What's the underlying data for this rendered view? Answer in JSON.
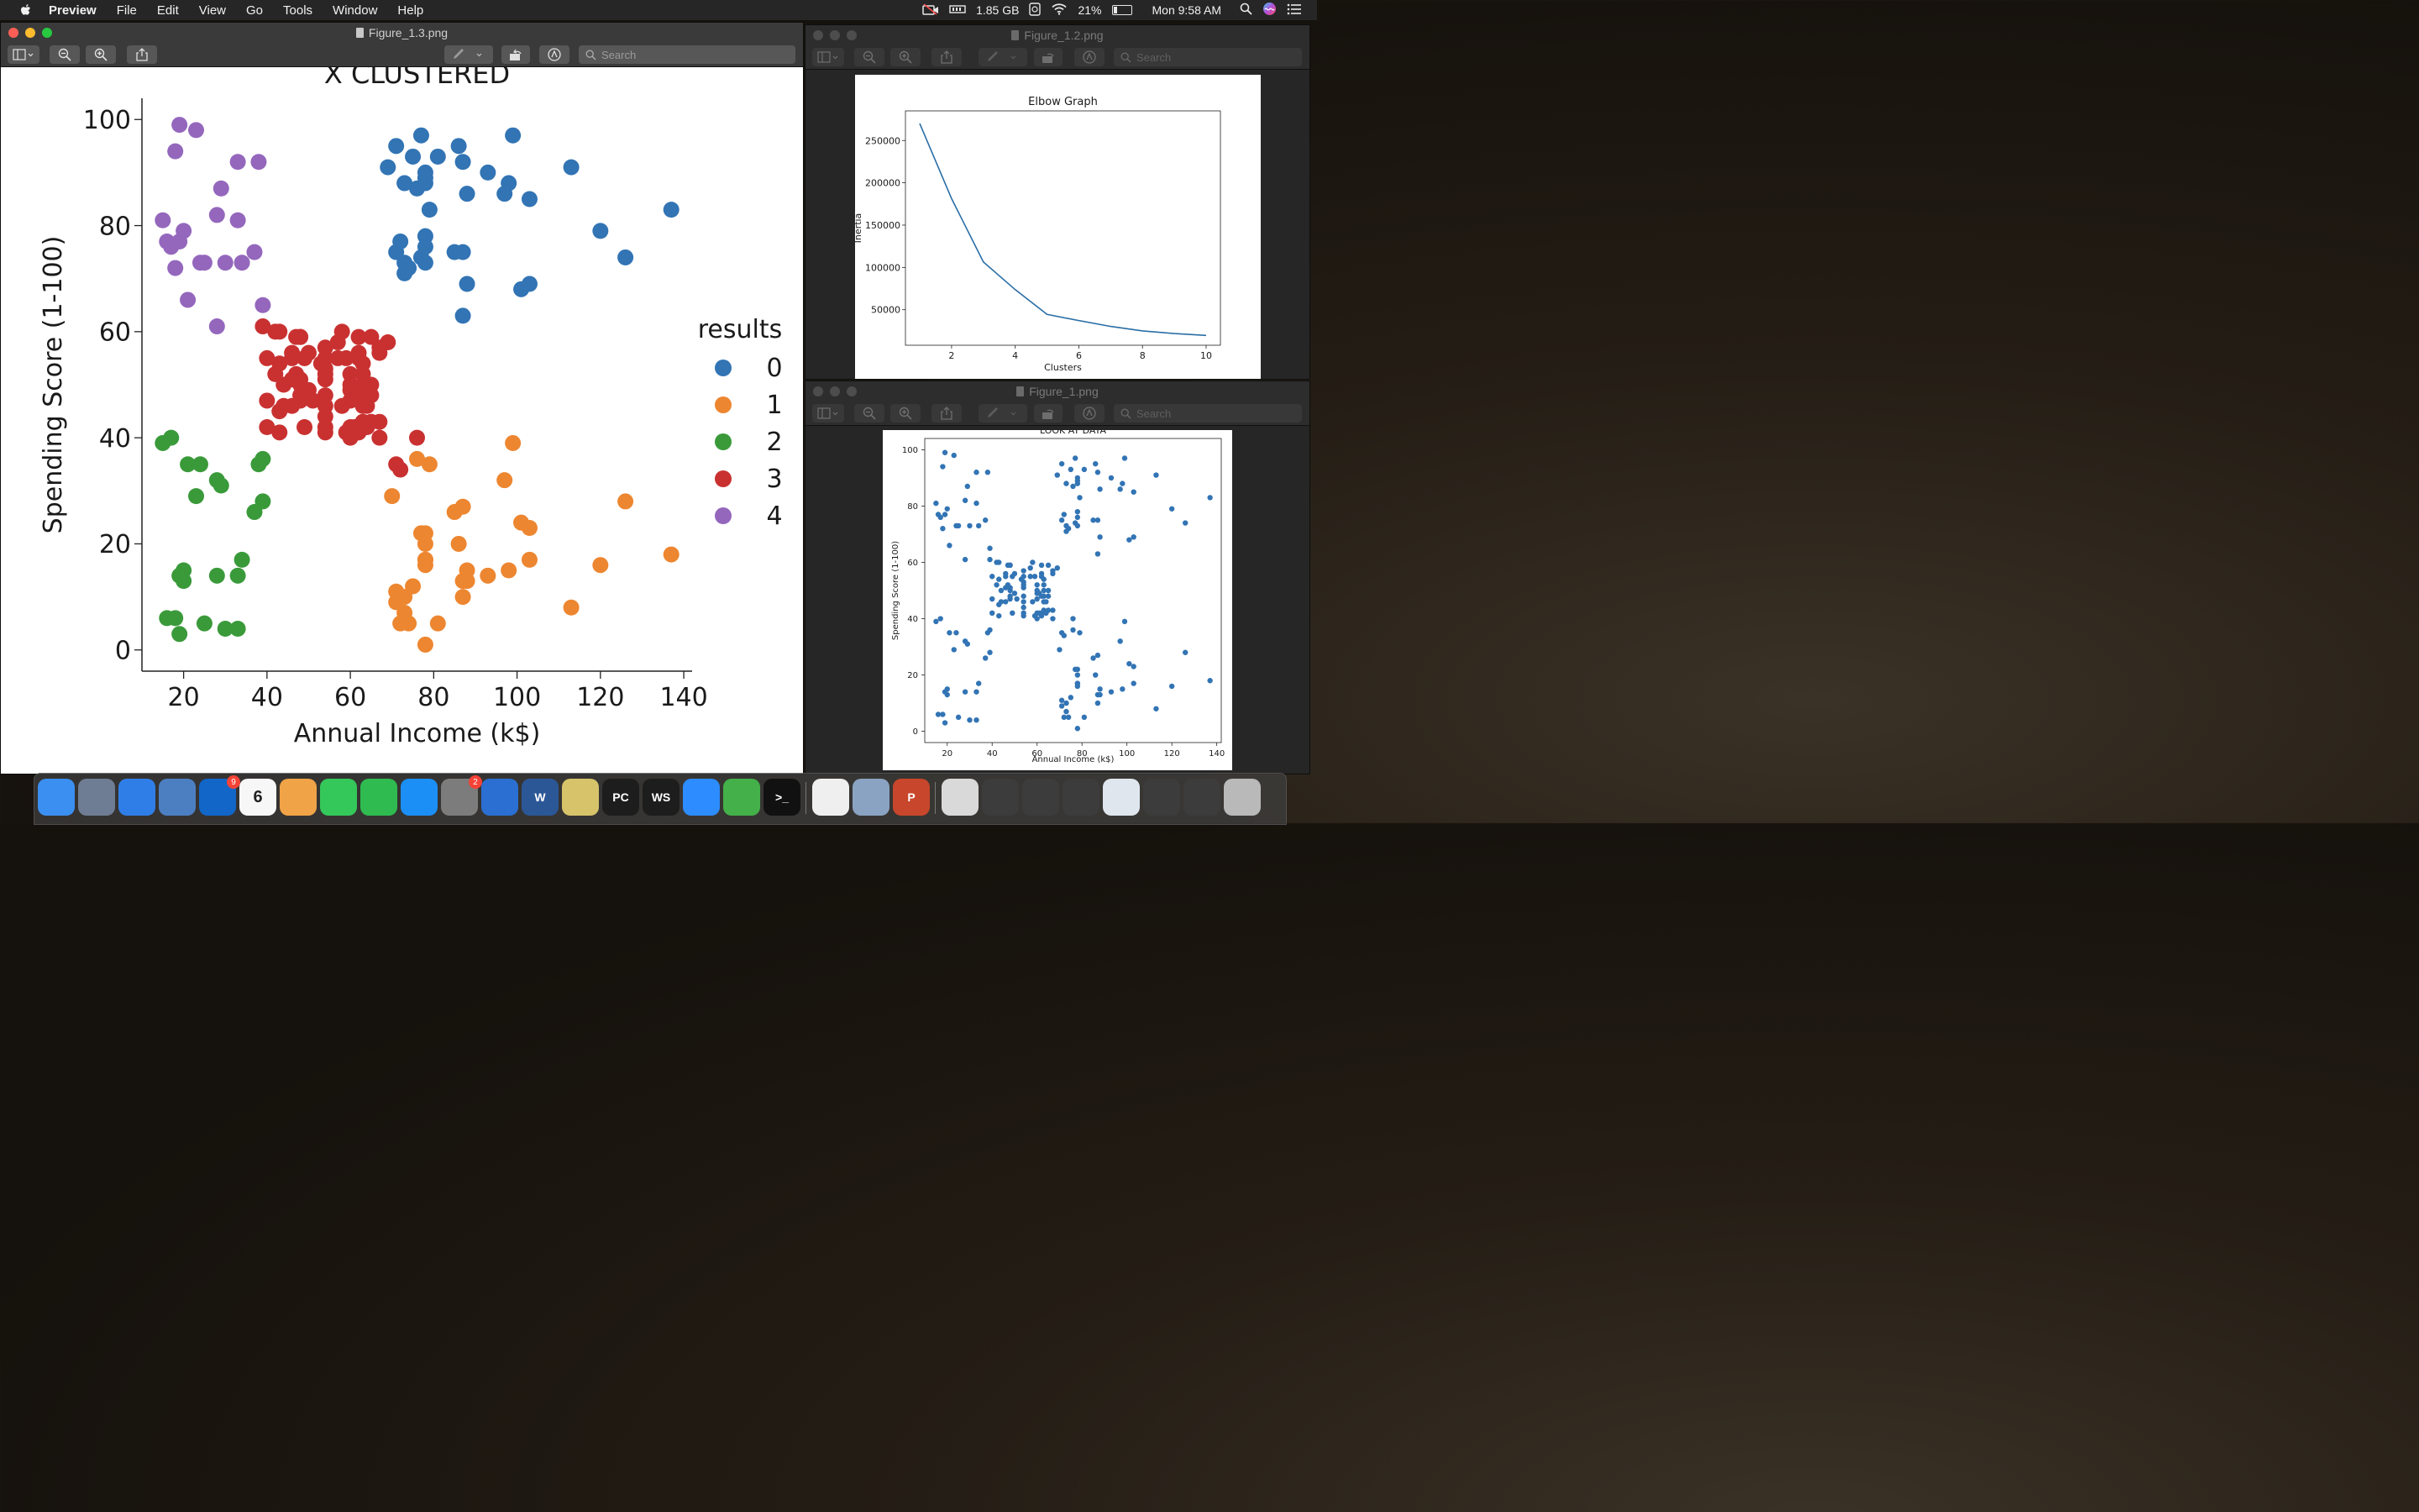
{
  "menubar": {
    "app_name": "Preview",
    "menus": [
      "File",
      "Edit",
      "View",
      "Go",
      "Tools",
      "Window",
      "Help"
    ],
    "memory": "1.85 GB",
    "battery_percent": "21%",
    "clock": "Mon 9:58 AM"
  },
  "windows": {
    "fig13": {
      "title": "Figure_1.3.png",
      "search_placeholder": "Search"
    },
    "fig12": {
      "title": "Figure_1.2.png",
      "search_placeholder": "Search"
    },
    "fig1": {
      "title": "Figure_1.png",
      "search_placeholder": "Search"
    }
  },
  "chart_data": [
    {
      "type": "scatter",
      "title": "X CLUSTERED",
      "xlabel": "Annual Income (k$)",
      "ylabel": "Spending Score (1-100)",
      "xlim": [
        10,
        142
      ],
      "ylim": [
        -4,
        104
      ],
      "xticks": [
        20,
        40,
        60,
        80,
        100,
        120,
        140
      ],
      "yticks": [
        0,
        20,
        40,
        60,
        80,
        100
      ],
      "legend_title": "results",
      "legend_position": "right",
      "series": [
        {
          "name": "0",
          "color": "#3274b4",
          "points": [
            [
              69,
              91
            ],
            [
              71,
              95
            ],
            [
              71,
              75
            ],
            [
              72,
              77
            ],
            [
              73,
              88
            ],
            [
              73,
              73
            ],
            [
              73,
              71
            ],
            [
              74,
              72
            ],
            [
              75,
              93
            ],
            [
              76,
              87
            ],
            [
              77,
              97
            ],
            [
              77,
              74
            ],
            [
              78,
              90
            ],
            [
              78,
              88
            ],
            [
              78,
              78
            ],
            [
              78,
              76
            ],
            [
              78,
              89
            ],
            [
              78,
              73
            ],
            [
              79,
              83
            ],
            [
              81,
              93
            ],
            [
              85,
              75
            ],
            [
              86,
              95
            ],
            [
              87,
              75
            ],
            [
              87,
              92
            ],
            [
              87,
              63
            ],
            [
              88,
              86
            ],
            [
              88,
              69
            ],
            [
              93,
              90
            ],
            [
              97,
              86
            ],
            [
              98,
              88
            ],
            [
              99,
              97
            ],
            [
              101,
              68
            ],
            [
              103,
              85
            ],
            [
              103,
              69
            ],
            [
              113,
              91
            ],
            [
              120,
              79
            ],
            [
              126,
              74
            ],
            [
              137,
              83
            ]
          ]
        },
        {
          "name": "1",
          "color": "#ed8630",
          "points": [
            [
              70,
              29
            ],
            [
              71,
              11
            ],
            [
              71,
              9
            ],
            [
              72,
              5
            ],
            [
              73,
              7
            ],
            [
              73,
              10
            ],
            [
              74,
              5
            ],
            [
              75,
              12
            ],
            [
              76,
              36
            ],
            [
              77,
              22
            ],
            [
              78,
              17
            ],
            [
              78,
              20
            ],
            [
              78,
              16
            ],
            [
              78,
              1
            ],
            [
              78,
              22
            ],
            [
              78,
              17
            ],
            [
              79,
              35
            ],
            [
              81,
              5
            ],
            [
              85,
              26
            ],
            [
              86,
              20
            ],
            [
              87,
              27
            ],
            [
              87,
              13
            ],
            [
              87,
              10
            ],
            [
              88,
              13
            ],
            [
              88,
              15
            ],
            [
              93,
              14
            ],
            [
              97,
              32
            ],
            [
              98,
              15
            ],
            [
              99,
              39
            ],
            [
              101,
              24
            ],
            [
              103,
              17
            ],
            [
              103,
              23
            ],
            [
              113,
              8
            ],
            [
              120,
              16
            ],
            [
              126,
              28
            ],
            [
              137,
              18
            ]
          ]
        },
        {
          "name": "2",
          "color": "#3a9a3a",
          "points": [
            [
              15,
              39
            ],
            [
              16,
              6
            ],
            [
              17,
              40
            ],
            [
              18,
              6
            ],
            [
              19,
              3
            ],
            [
              19,
              14
            ],
            [
              20,
              15
            ],
            [
              20,
              13
            ],
            [
              21,
              35
            ],
            [
              23,
              29
            ],
            [
              24,
              35
            ],
            [
              25,
              5
            ],
            [
              28,
              14
            ],
            [
              28,
              32
            ],
            [
              29,
              31
            ],
            [
              30,
              4
            ],
            [
              33,
              4
            ],
            [
              33,
              14
            ],
            [
              34,
              17
            ],
            [
              37,
              26
            ],
            [
              38,
              35
            ],
            [
              39,
              36
            ],
            [
              39,
              28
            ]
          ]
        },
        {
          "name": "3",
          "color": "#c93131",
          "points": [
            [
              39,
              61
            ],
            [
              40,
              55
            ],
            [
              40,
              47
            ],
            [
              40,
              42
            ],
            [
              42,
              52
            ],
            [
              42,
              60
            ],
            [
              43,
              54
            ],
            [
              43,
              60
            ],
            [
              43,
              45
            ],
            [
              43,
              41
            ],
            [
              44,
              50
            ],
            [
              44,
              46
            ],
            [
              46,
              51
            ],
            [
              46,
              46
            ],
            [
              46,
              56
            ],
            [
              46,
              55
            ],
            [
              47,
              52
            ],
            [
              47,
              59
            ],
            [
              48,
              51
            ],
            [
              48,
              59
            ],
            [
              48,
              50
            ],
            [
              48,
              48
            ],
            [
              48,
              59
            ],
            [
              48,
              47
            ],
            [
              49,
              55
            ],
            [
              49,
              42
            ],
            [
              50,
              49
            ],
            [
              50,
              56
            ],
            [
              51,
              47
            ],
            [
              53,
              54
            ],
            [
              54,
              53
            ],
            [
              54,
              48
            ],
            [
              54,
              52
            ],
            [
              54,
              42
            ],
            [
              54,
              51
            ],
            [
              54,
              55
            ],
            [
              54,
              41
            ],
            [
              54,
              44
            ],
            [
              54,
              57
            ],
            [
              54,
              46
            ],
            [
              57,
              58
            ],
            [
              57,
              55
            ],
            [
              58,
              60
            ],
            [
              58,
              46
            ],
            [
              59,
              55
            ],
            [
              59,
              41
            ],
            [
              60,
              49
            ],
            [
              60,
              40
            ],
            [
              60,
              42
            ],
            [
              60,
              52
            ],
            [
              60,
              47
            ],
            [
              60,
              50
            ],
            [
              61,
              42
            ],
            [
              61,
              49
            ],
            [
              62,
              41
            ],
            [
              62,
              48
            ],
            [
              62,
              59
            ],
            [
              62,
              55
            ],
            [
              62,
              56
            ],
            [
              62,
              42
            ],
            [
              63,
              50
            ],
            [
              63,
              46
            ],
            [
              63,
              43
            ],
            [
              63,
              48
            ],
            [
              63,
              52
            ],
            [
              63,
              54
            ],
            [
              64,
              42
            ],
            [
              64,
              46
            ],
            [
              65,
              48
            ],
            [
              65,
              50
            ],
            [
              65,
              43
            ],
            [
              65,
              59
            ],
            [
              67,
              43
            ],
            [
              67,
              57
            ],
            [
              67,
              56
            ],
            [
              67,
              40
            ],
            [
              69,
              58
            ],
            [
              71,
              35
            ],
            [
              72,
              34
            ],
            [
              76,
              40
            ]
          ]
        },
        {
          "name": "4",
          "color": "#9467bd",
          "points": [
            [
              15,
              81
            ],
            [
              16,
              77
            ],
            [
              17,
              76
            ],
            [
              18,
              94
            ],
            [
              18,
              72
            ],
            [
              19,
              99
            ],
            [
              19,
              77
            ],
            [
              20,
              79
            ],
            [
              21,
              66
            ],
            [
              23,
              98
            ],
            [
              24,
              73
            ],
            [
              25,
              73
            ],
            [
              28,
              82
            ],
            [
              28,
              61
            ],
            [
              29,
              87
            ],
            [
              30,
              73
            ],
            [
              33,
              92
            ],
            [
              33,
              81
            ],
            [
              34,
              73
            ],
            [
              37,
              75
            ],
            [
              38,
              92
            ],
            [
              39,
              65
            ]
          ]
        }
      ]
    },
    {
      "type": "line",
      "title": "Elbow Graph",
      "xlabel": "Clusters",
      "ylabel": "Inertia",
      "xlim": [
        0.55,
        10.45
      ],
      "ylim": [
        8000,
        285000
      ],
      "xticks": [
        2,
        4,
        6,
        8,
        10
      ],
      "yticks": [
        50000,
        100000,
        150000,
        200000,
        250000
      ],
      "series": [
        {
          "x": [
            1,
            2,
            3,
            4,
            5,
            6,
            7,
            8,
            9,
            10
          ],
          "values": [
            269981,
            181363,
            106348,
            73679,
            44448,
            37233,
            30259,
            25011,
            21850,
            19657
          ]
        }
      ]
    },
    {
      "type": "scatter",
      "title": "LOOK AT DATA",
      "xlabel": "Annual Income (k$)",
      "ylabel": "Spending Score (1-100)",
      "xlim": [
        10,
        142
      ],
      "ylim": [
        -4,
        104
      ],
      "xticks": [
        20,
        40,
        60,
        80,
        100,
        120,
        140
      ],
      "yticks": [
        0,
        20,
        40,
        60,
        80,
        100
      ],
      "series": [
        {
          "color": "#3274b4",
          "points_from": "all_clusters"
        }
      ]
    }
  ],
  "dock": {
    "items": [
      {
        "name": "finder-icon",
        "bg": "#3b8ff0"
      },
      {
        "name": "launchpad-icon",
        "bg": "#6e7d93"
      },
      {
        "name": "safari-icon",
        "bg": "#2f7ee8"
      },
      {
        "name": "preview-icon",
        "bg": "#4c7fc2"
      },
      {
        "name": "outlook-icon",
        "bg": "#1166c8",
        "badge": "9"
      },
      {
        "name": "calendar-icon",
        "bg": "#f7f7f7",
        "text": "6"
      },
      {
        "name": "photos-icon",
        "bg": "#f0a347"
      },
      {
        "name": "messages-icon",
        "bg": "#34c759"
      },
      {
        "name": "facetime-icon",
        "bg": "#2fbb4f"
      },
      {
        "name": "app-store-icon",
        "bg": "#1b8ff5"
      },
      {
        "name": "system-preferences-icon",
        "bg": "#7c7c7c",
        "badge": "2"
      },
      {
        "name": "activity-monitor-icon",
        "bg": "#2a6fd1"
      },
      {
        "name": "word-icon",
        "bg": "#2b5797",
        "text": "W"
      },
      {
        "name": "python-icon",
        "bg": "#d6c36a"
      },
      {
        "name": "pycharm-icon",
        "bg": "#1d1d1d",
        "text": "PC"
      },
      {
        "name": "webstorm-icon",
        "bg": "#1d1d1d",
        "text": "WS"
      },
      {
        "name": "zoom-icon",
        "bg": "#2d8cff"
      },
      {
        "name": "anaconda-icon",
        "bg": "#43b049"
      },
      {
        "name": "terminal-icon",
        "bg": "#111111",
        "text": ">_"
      },
      {
        "name": "textedit-icon",
        "bg": "#efefef"
      },
      {
        "name": "preview-doc-icon",
        "bg": "#8aa3c2"
      },
      {
        "name": "powerpoint-icon",
        "bg": "#c8462b",
        "text": "P"
      },
      {
        "name": "documents-folder-icon",
        "bg": "#d9d9d9"
      },
      {
        "name": "window-thumb-1-icon",
        "bg": "#3c3c3c"
      },
      {
        "name": "window-thumb-2-icon",
        "bg": "#3c3c3c"
      },
      {
        "name": "window-thumb-3-icon",
        "bg": "#3c3c3c"
      },
      {
        "name": "window-thumb-4-icon",
        "bg": "#dfe6ee"
      },
      {
        "name": "window-thumb-5-icon",
        "bg": "#3c3c3c"
      },
      {
        "name": "window-thumb-6-icon",
        "bg": "#3c3c3c"
      },
      {
        "name": "trash-icon",
        "bg": "#b9b9b9"
      }
    ]
  }
}
